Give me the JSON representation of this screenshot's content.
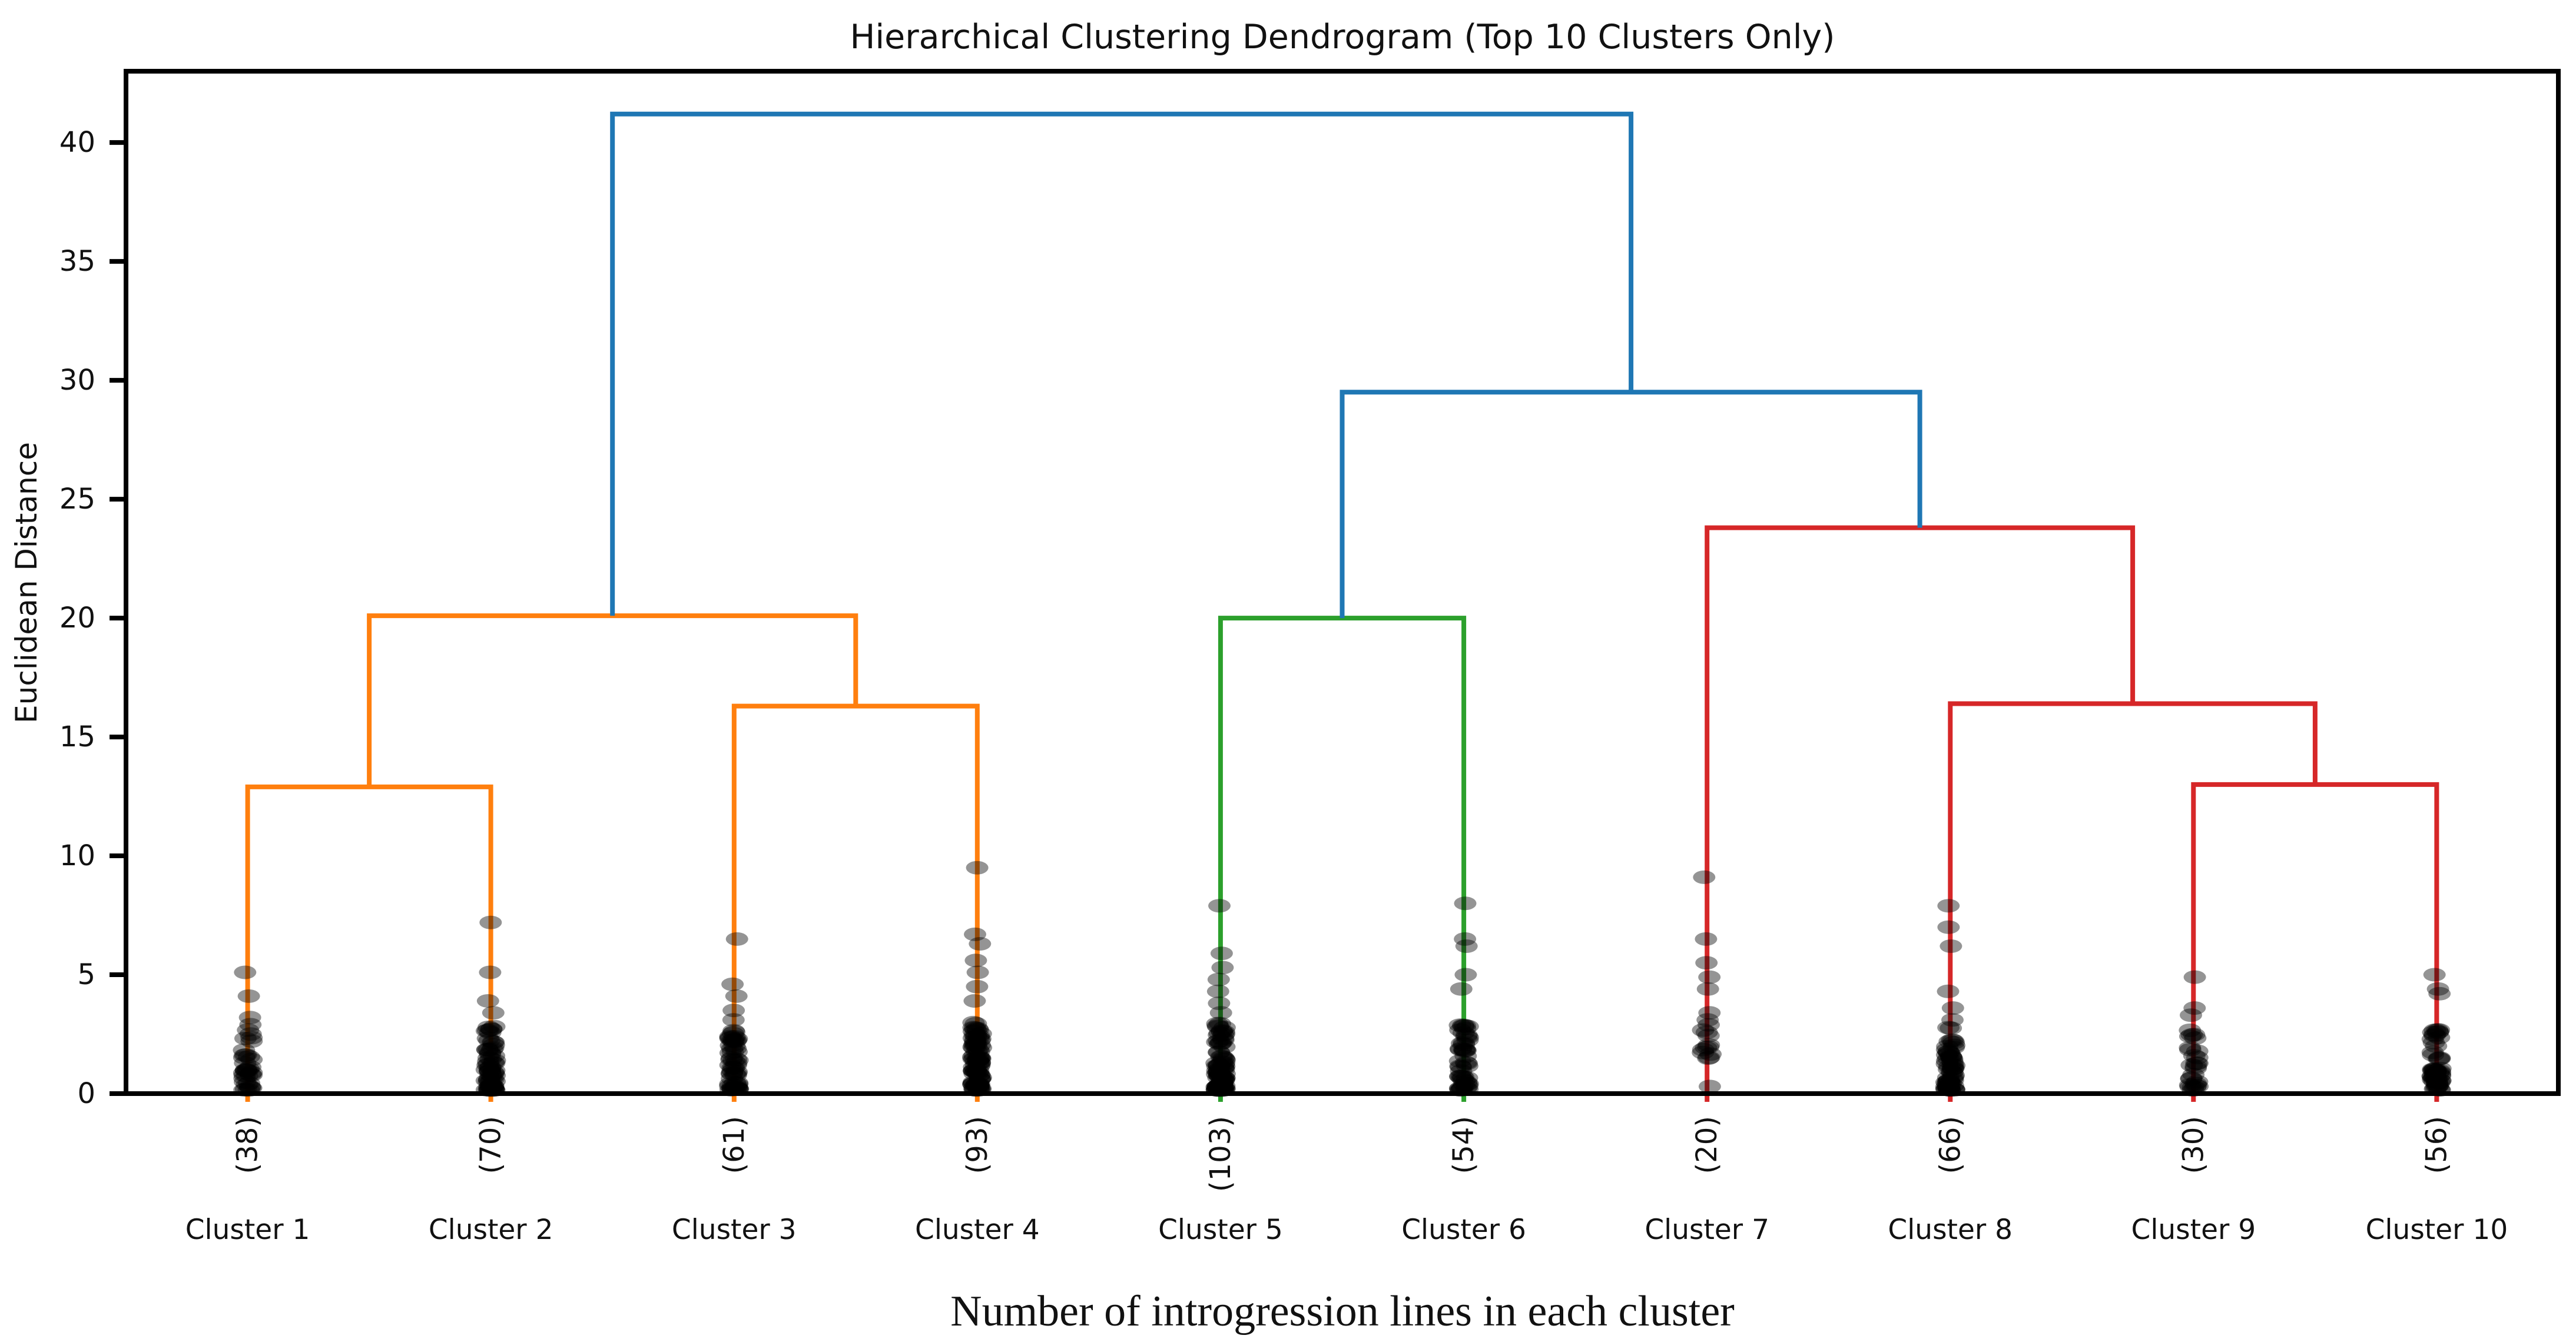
{
  "chart_data": {
    "type": "dendrogram",
    "title": "Hierarchical Clustering Dendrogram (Top 10 Clusters Only)",
    "xlabel": "Number of introgression lines in each cluster",
    "ylabel": "Euclidean Distance",
    "xlim": [
      0,
      100
    ],
    "ylim": [
      0,
      43
    ],
    "yticks": [
      0,
      5,
      10,
      15,
      20,
      25,
      30,
      35,
      40
    ],
    "grid": false,
    "legend": null,
    "colors": {
      "above_threshold": "#1f77b4",
      "cluster_group_1": "#ff7f0e",
      "cluster_group_2": "#2ca02c",
      "cluster_group_3": "#d62728",
      "scatter_dot": "#000000",
      "scatter_dot_alpha": 0.42,
      "axis": "#000000"
    },
    "leaves": [
      {
        "label": "Cluster 1",
        "count_label": "(38)",
        "count": 38,
        "x": 5,
        "color": "cluster_group_1",
        "scatter_outliers": [
          5.1,
          4.1,
          3.2,
          2.9
        ],
        "scatter_dense": {
          "n": 34,
          "min": 0.15,
          "max": 2.7
        }
      },
      {
        "label": "Cluster 2",
        "count_label": "(70)",
        "count": 70,
        "x": 15,
        "color": "cluster_group_1",
        "scatter_outliers": [
          7.2,
          5.1,
          3.9,
          3.4
        ],
        "scatter_dense": {
          "n": 66,
          "min": 0.15,
          "max": 2.9
        }
      },
      {
        "label": "Cluster 3",
        "count_label": "(61)",
        "count": 61,
        "x": 25,
        "color": "cluster_group_1",
        "scatter_outliers": [
          6.5,
          4.6,
          4.1,
          3.5,
          3.1
        ],
        "scatter_dense": {
          "n": 56,
          "min": 0.15,
          "max": 2.8
        }
      },
      {
        "label": "Cluster 4",
        "count_label": "(93)",
        "count": 93,
        "x": 35,
        "color": "cluster_group_1",
        "scatter_outliers": [
          9.5,
          6.7,
          6.3,
          5.6,
          5.1,
          4.5,
          3.9
        ],
        "scatter_dense": {
          "n": 86,
          "min": 0.15,
          "max": 3.0
        }
      },
      {
        "label": "Cluster 5",
        "count_label": "(103)",
        "count": 103,
        "x": 45,
        "color": "cluster_group_2",
        "scatter_outliers": [
          7.9,
          5.9,
          5.3,
          4.8,
          4.3,
          3.8,
          3.4
        ],
        "scatter_dense": {
          "n": 96,
          "min": 0.15,
          "max": 3.0
        }
      },
      {
        "label": "Cluster 6",
        "count_label": "(54)",
        "count": 54,
        "x": 55,
        "color": "cluster_group_2",
        "scatter_outliers": [
          8.0,
          6.5,
          6.2,
          5.0,
          4.4
        ],
        "scatter_dense": {
          "n": 49,
          "min": 0.15,
          "max": 3.0
        }
      },
      {
        "label": "Cluster 7",
        "count_label": "(20)",
        "count": 20,
        "x": 65,
        "color": "cluster_group_3",
        "scatter_outliers": [
          9.1,
          6.5,
          5.5,
          4.9,
          4.4,
          3.4,
          3.1,
          0.3
        ],
        "scatter_dense": {
          "n": 12,
          "min": 1.4,
          "max": 3.0
        }
      },
      {
        "label": "Cluster 8",
        "count_label": "(66)",
        "count": 66,
        "x": 75,
        "color": "cluster_group_3",
        "scatter_outliers": [
          7.9,
          7.0,
          6.2,
          4.3,
          3.6,
          3.1
        ],
        "scatter_dense": {
          "n": 60,
          "min": 0.15,
          "max": 2.8
        }
      },
      {
        "label": "Cluster 9",
        "count_label": "(30)",
        "count": 30,
        "x": 85,
        "color": "cluster_group_3",
        "scatter_outliers": [
          4.9,
          3.6,
          3.3
        ],
        "scatter_dense": {
          "n": 27,
          "min": 0.15,
          "max": 2.7
        }
      },
      {
        "label": "Cluster 10",
        "count_label": "(56)",
        "count": 56,
        "x": 95,
        "color": "cluster_group_3",
        "scatter_outliers": [
          5.0,
          4.4,
          4.2
        ],
        "scatter_dense": {
          "n": 53,
          "min": 0.15,
          "max": 2.8
        }
      }
    ],
    "links": [
      {
        "x1": 5,
        "h1": 0,
        "x2": 15,
        "h2": 0,
        "height": 12.9,
        "color": "cluster_group_1"
      },
      {
        "x1": 25,
        "h1": 0,
        "x2": 35,
        "h2": 0,
        "height": 16.3,
        "color": "cluster_group_1"
      },
      {
        "x1": 10,
        "h1": 12.9,
        "x2": 30,
        "h2": 16.3,
        "height": 20.1,
        "color": "cluster_group_1"
      },
      {
        "x1": 45,
        "h1": 0,
        "x2": 55,
        "h2": 0,
        "height": 20.0,
        "color": "cluster_group_2"
      },
      {
        "x1": 85,
        "h1": 0,
        "x2": 95,
        "h2": 0,
        "height": 13.0,
        "color": "cluster_group_3"
      },
      {
        "x1": 75,
        "h1": 0,
        "x2": 90,
        "h2": 13.0,
        "height": 16.4,
        "color": "cluster_group_3"
      },
      {
        "x1": 65,
        "h1": 0,
        "x2": 82.5,
        "h2": 16.4,
        "height": 23.8,
        "color": "cluster_group_3"
      },
      {
        "x1": 50,
        "h1": 20.0,
        "x2": 73.75,
        "h2": 23.8,
        "height": 29.5,
        "color": "above_threshold"
      },
      {
        "x1": 20,
        "h1": 20.1,
        "x2": 61.875,
        "h2": 29.5,
        "height": 41.2,
        "color": "above_threshold"
      }
    ]
  }
}
